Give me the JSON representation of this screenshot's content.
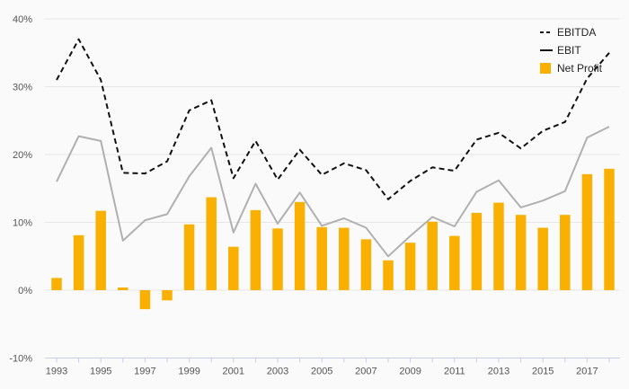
{
  "chart_data": {
    "type": "bar",
    "title": "",
    "xlabel": "",
    "ylabel": "",
    "ylim": [
      -10,
      40
    ],
    "y_ticks": [
      "-10%",
      "0%",
      "10%",
      "20%",
      "30%",
      "40%"
    ],
    "y_tick_values": [
      -10,
      0,
      10,
      20,
      30,
      40
    ],
    "x_tick_labels": [
      "1993",
      "1995",
      "1997",
      "1999",
      "2001",
      "2003",
      "2005",
      "2007",
      "2009",
      "2011",
      "2013",
      "2015",
      "2017"
    ],
    "categories": [
      "1993",
      "1994",
      "1995",
      "1996",
      "1997",
      "1998",
      "1999",
      "2000",
      "2001",
      "2002",
      "2003",
      "2004",
      "2005",
      "2006",
      "2007",
      "2008",
      "2009",
      "2010",
      "2011",
      "2012",
      "2013",
      "2014",
      "2015",
      "2016",
      "2017",
      "2018"
    ],
    "grid": "horizontal",
    "legend_position": "top-right",
    "series": [
      {
        "name": "EBITDA",
        "type": "line",
        "style": "dashed",
        "color": "#111111",
        "values": [
          31.0,
          37.0,
          31.0,
          17.3,
          17.2,
          19.0,
          26.5,
          28.0,
          16.5,
          22.0,
          16.3,
          20.7,
          17.0,
          18.7,
          17.7,
          13.4,
          16.1,
          18.1,
          17.6,
          22.2,
          23.2,
          20.9,
          23.5,
          24.8,
          31.2,
          35.0
        ]
      },
      {
        "name": "EBIT",
        "type": "line",
        "style": "solid",
        "color": "#b0b0b0",
        "legend_color": "#111111",
        "values": [
          16.0,
          22.7,
          22.0,
          7.3,
          10.3,
          11.2,
          16.8,
          21.0,
          8.5,
          15.7,
          9.8,
          14.4,
          9.5,
          10.6,
          9.2,
          5.0,
          8.0,
          10.8,
          9.4,
          14.5,
          16.2,
          12.2,
          13.2,
          14.6,
          22.5,
          24.1
        ]
      },
      {
        "name": "Net Profit",
        "type": "bar",
        "color": "#f9b000",
        "values": [
          1.8,
          8.1,
          11.7,
          0.4,
          -2.8,
          -1.5,
          9.7,
          13.7,
          6.4,
          11.8,
          9.1,
          13.0,
          9.3,
          9.2,
          7.5,
          4.4,
          7.0,
          10.1,
          8.0,
          11.4,
          12.9,
          11.1,
          9.2,
          11.1,
          17.1,
          17.9
        ]
      }
    ]
  }
}
